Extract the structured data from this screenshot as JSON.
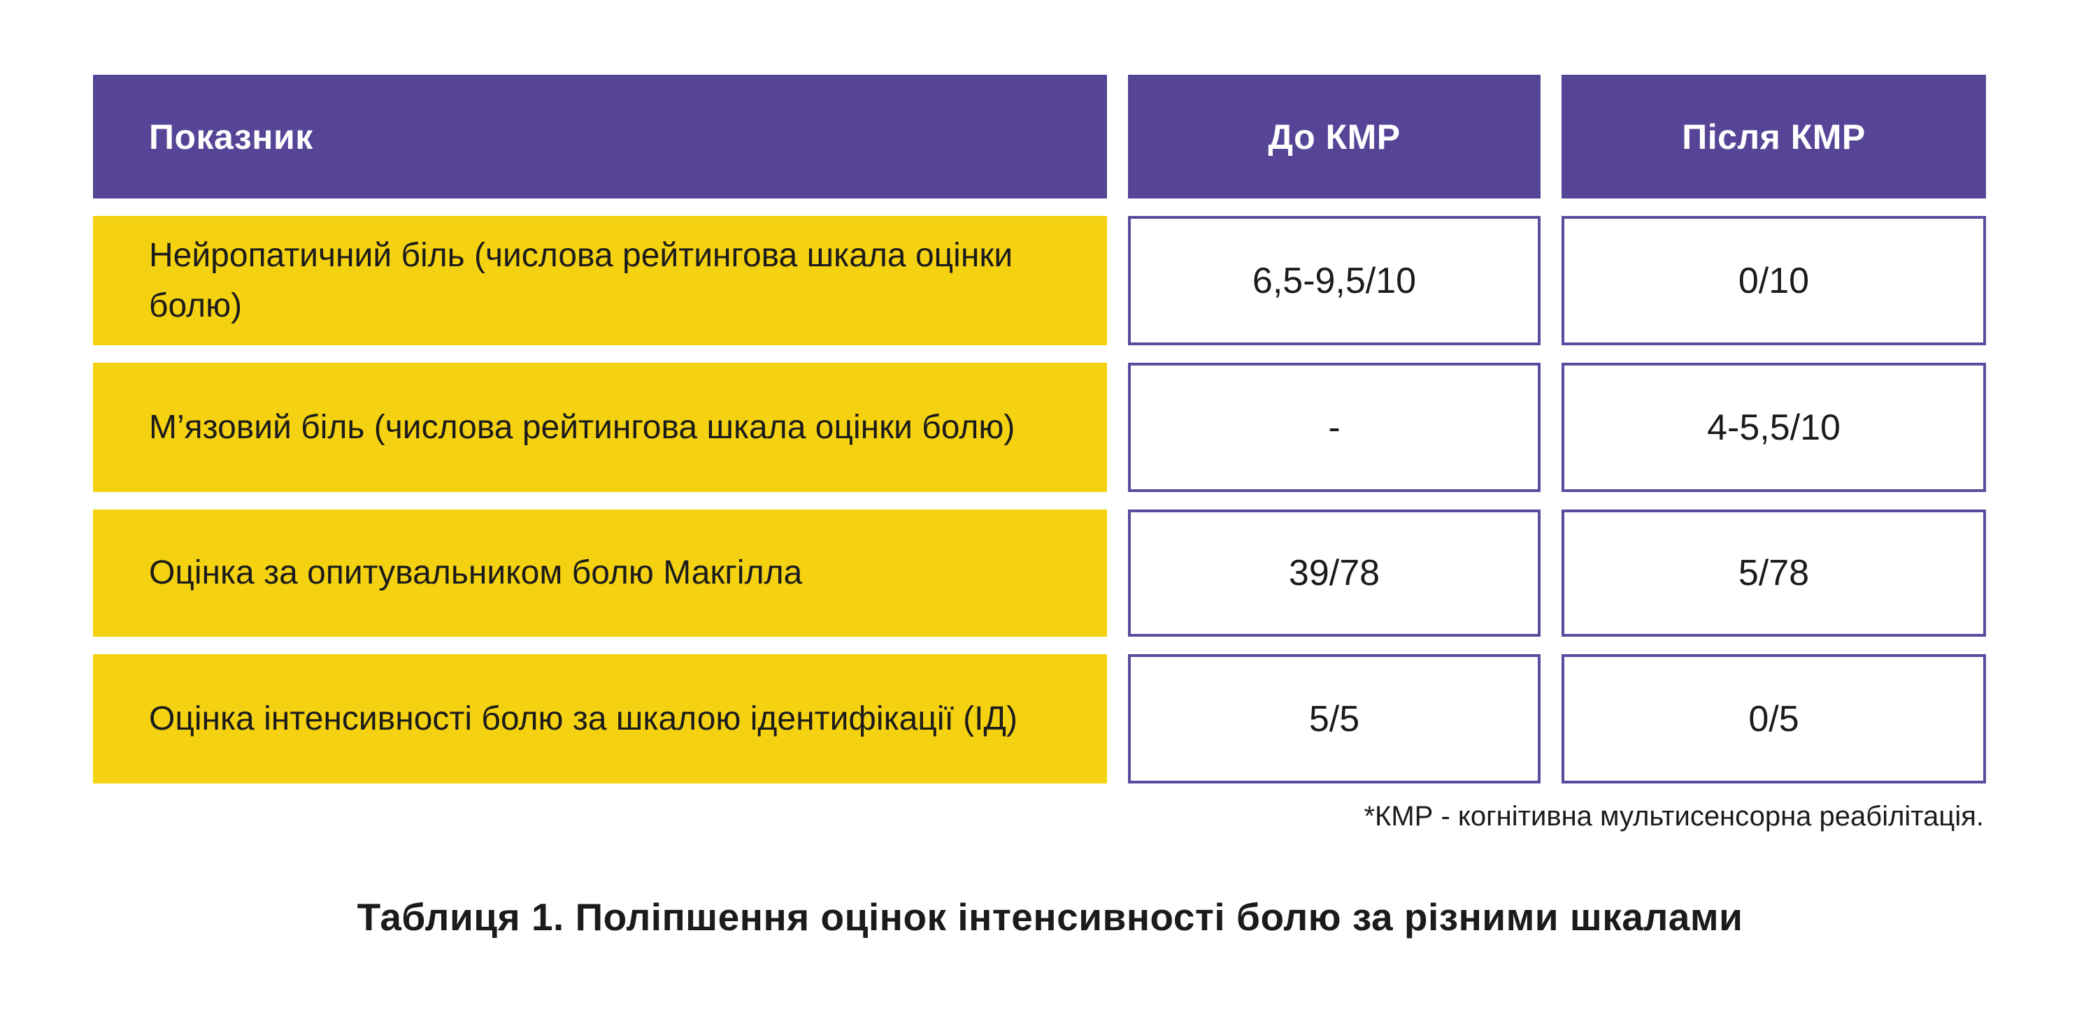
{
  "colors": {
    "background": "#ffffff",
    "header_purple": "#564596",
    "cell_yellow": "#F5D211",
    "value_border": "#5B4B9E",
    "header_text": "#ffffff",
    "text_dark": "#1b1b1b"
  },
  "table": {
    "header": {
      "col1": "Показник",
      "col2": "До КМР",
      "col3": "Після КМР"
    },
    "rows": [
      {
        "label": "Нейропатичний біль (числова рейтингова шкала оцінки болю)",
        "before": "6,5-9,5/10",
        "after": "0/10"
      },
      {
        "label": "М’язовий біль (числова рейтингова шкала оцінки болю)",
        "before": "-",
        "after": "4-5,5/10"
      },
      {
        "label": "Оцінка за опитувальником болю Макгілла",
        "before": "39/78",
        "after": "5/78"
      },
      {
        "label": "Оцінка інтенсивності болю за шкалою ідентифікації (ІД)",
        "before": "5/5",
        "after": "0/5"
      }
    ],
    "footnote": "*КМР - когнітивна мультисенсорна реабілітація.",
    "caption": "Таблиця 1. Поліпшення оцінок інтенсивності болю за різними шкалами"
  },
  "chart_data": {
    "type": "table",
    "title": "Таблиця 1. Поліпшення оцінок інтенсивності болю за різними шкалами",
    "columns": [
      "Показник",
      "До КМР",
      "Після КМР"
    ],
    "rows": [
      [
        "Нейропатичний біль (числова рейтингова шкала оцінки болю)",
        "6,5-9,5/10",
        "0/10"
      ],
      [
        "М’язовий біль (числова рейтингова шкала оцінки болю)",
        "-",
        "4-5,5/10"
      ],
      [
        "Оцінка за опитувальником болю Макгілла",
        "39/78",
        "5/78"
      ],
      [
        "Оцінка інтенсивності болю за шкалою ідентифікації (ІД)",
        "5/5",
        "0/5"
      ]
    ],
    "footnote": "*КМР - когнітивна мультисенсорна реабілітація.",
    "layout_hints": {
      "header_fill": "#564596",
      "label_column_fill": "#F5D211",
      "value_cells": "white with purple border",
      "footnote_align": "right",
      "caption_align": "center"
    }
  }
}
